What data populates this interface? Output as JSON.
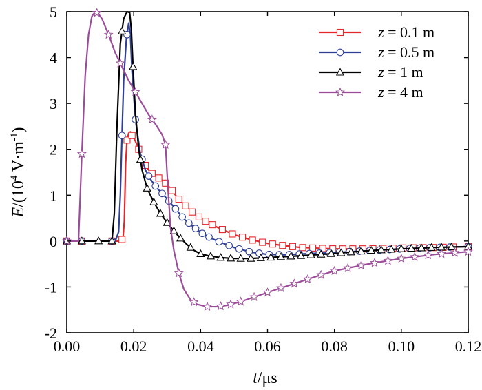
{
  "chart_data": {
    "type": "line",
    "xlabel": {
      "var": "t",
      "rest": "/μs"
    },
    "ylabel": {
      "var": "E",
      "pre": "/(10",
      "exp": "4",
      "mid": " V·m",
      "exp2": "-1",
      "post": ")"
    },
    "xlim": [
      0.0,
      0.12
    ],
    "ylim": [
      -2,
      5
    ],
    "xticks": [
      0.0,
      0.02,
      0.04,
      0.06,
      0.08,
      0.1,
      0.12
    ],
    "xtick_labels": [
      "0.00",
      "0.02",
      "0.04",
      "0.06",
      "0.08",
      "0.10",
      "0.12"
    ],
    "yticks": [
      -2,
      -1,
      0,
      1,
      2,
      3,
      4,
      5
    ],
    "ytick_labels": [
      "-2",
      "-1",
      "0",
      "1",
      "2",
      "3",
      "4",
      "5"
    ],
    "grid": false,
    "legend_position": "top-right",
    "series": [
      {
        "name": "z = 0.1 m",
        "legend": {
          "var": "z",
          "rest": " = 0.1 m"
        },
        "color": "#e3262b",
        "marker": "square",
        "x": [
          0.0,
          0.0158,
          0.0168,
          0.0172,
          0.0176,
          0.018,
          0.0185,
          0.019,
          0.0195,
          0.02,
          0.021,
          0.022,
          0.0235,
          0.025,
          0.027,
          0.029,
          0.031,
          0.033,
          0.035,
          0.038,
          0.041,
          0.045,
          0.05,
          0.055,
          0.06,
          0.065,
          0.07,
          0.08,
          0.09,
          0.1,
          0.11,
          0.12
        ],
        "y": [
          0.0,
          0.0,
          0.05,
          0.45,
          1.7,
          2.2,
          2.35,
          2.38,
          2.3,
          2.25,
          2.1,
          1.9,
          1.65,
          1.5,
          1.4,
          1.3,
          1.15,
          0.95,
          0.8,
          0.6,
          0.45,
          0.3,
          0.14,
          0.03,
          -0.05,
          -0.1,
          -0.14,
          -0.17,
          -0.17,
          -0.15,
          -0.14,
          -0.12
        ],
        "marker_x": [
          0.0,
          0.0045,
          0.0135,
          0.0165,
          0.018,
          0.0195,
          0.0215,
          0.0235,
          0.0255,
          0.0275,
          0.0295,
          0.0315,
          0.0335,
          0.0355,
          0.0375,
          0.0395,
          0.0415,
          0.0435,
          0.0465,
          0.0495,
          0.0525,
          0.0555,
          0.0585,
          0.0615,
          0.0645,
          0.0675,
          0.0705,
          0.0735,
          0.0765,
          0.0795,
          0.0825,
          0.0855,
          0.0885,
          0.0915,
          0.0945,
          0.0975,
          0.1005,
          0.1035,
          0.1065,
          0.1095,
          0.1125,
          0.1155,
          0.12
        ]
      },
      {
        "name": "z = 0.5 m",
        "legend": {
          "var": "z",
          "rest": " = 0.5 m"
        },
        "color": "#2e3f94",
        "marker": "circle",
        "x": [
          0.0,
          0.0145,
          0.0155,
          0.016,
          0.0165,
          0.017,
          0.0178,
          0.0185,
          0.019,
          0.0195,
          0.0205,
          0.022,
          0.0235,
          0.025,
          0.027,
          0.029,
          0.031,
          0.033,
          0.035,
          0.038,
          0.041,
          0.045,
          0.05,
          0.055,
          0.06,
          0.065,
          0.07,
          0.08,
          0.09,
          0.1,
          0.11,
          0.12
        ],
        "y": [
          0.0,
          0.0,
          0.2,
          1.0,
          2.3,
          3.5,
          4.4,
          4.75,
          4.5,
          3.7,
          2.65,
          1.9,
          1.55,
          1.35,
          1.15,
          1.0,
          0.83,
          0.66,
          0.48,
          0.3,
          0.14,
          0.0,
          -0.14,
          -0.24,
          -0.29,
          -0.3,
          -0.28,
          -0.25,
          -0.21,
          -0.17,
          -0.14,
          -0.12
        ],
        "marker_x": [
          0.0,
          0.0045,
          0.0135,
          0.0165,
          0.018,
          0.0205,
          0.0225,
          0.0245,
          0.0265,
          0.0285,
          0.0305,
          0.0325,
          0.0345,
          0.0365,
          0.0385,
          0.0405,
          0.0425,
          0.0455,
          0.0485,
          0.0515,
          0.0545,
          0.0575,
          0.0605,
          0.0635,
          0.0665,
          0.0695,
          0.0725,
          0.0755,
          0.0785,
          0.0815,
          0.0845,
          0.0875,
          0.0905,
          0.0935,
          0.0965,
          0.0995,
          0.1025,
          0.1055,
          0.1085,
          0.1115,
          0.1145,
          0.12
        ]
      },
      {
        "name": "z = 1 m",
        "legend": {
          "var": "z",
          "rest": " = 1 m"
        },
        "color": "#000000",
        "marker": "triangle",
        "x": [
          0.0,
          0.0135,
          0.0142,
          0.015,
          0.016,
          0.017,
          0.018,
          0.0188,
          0.0193,
          0.0198,
          0.0205,
          0.0215,
          0.0225,
          0.024,
          0.026,
          0.028,
          0.03,
          0.032,
          0.034,
          0.036,
          0.038,
          0.04,
          0.043,
          0.046,
          0.05,
          0.055,
          0.06,
          0.07,
          0.08,
          0.09,
          0.1,
          0.11,
          0.12
        ],
        "y": [
          0.0,
          0.0,
          0.6,
          2.5,
          4.3,
          4.85,
          5.0,
          4.98,
          4.6,
          3.8,
          2.8,
          2.0,
          1.55,
          1.15,
          0.85,
          0.6,
          0.4,
          0.22,
          0.06,
          -0.08,
          -0.2,
          -0.28,
          -0.33,
          -0.36,
          -0.38,
          -0.38,
          -0.36,
          -0.32,
          -0.27,
          -0.21,
          -0.17,
          -0.14,
          -0.12
        ],
        "marker_x": [
          0.0,
          0.0045,
          0.0095,
          0.0135,
          0.0165,
          0.0198,
          0.022,
          0.024,
          0.026,
          0.028,
          0.03,
          0.032,
          0.034,
          0.037,
          0.04,
          0.043,
          0.046,
          0.049,
          0.052,
          0.055,
          0.058,
          0.061,
          0.064,
          0.067,
          0.07,
          0.073,
          0.076,
          0.079,
          0.082,
          0.085,
          0.088,
          0.091,
          0.094,
          0.097,
          0.1,
          0.103,
          0.106,
          0.109,
          0.112,
          0.115,
          0.12
        ]
      },
      {
        "name": "z = 4 m",
        "legend": {
          "var": "z",
          "rest": " = 4 m"
        },
        "color": "#9a4c98",
        "marker": "star",
        "x": [
          0.0,
          0.0035,
          0.0045,
          0.0055,
          0.0065,
          0.0075,
          0.0085,
          0.0095,
          0.0105,
          0.0125,
          0.0145,
          0.0165,
          0.0185,
          0.0205,
          0.0225,
          0.0245,
          0.0265,
          0.0285,
          0.0295,
          0.0302,
          0.031,
          0.032,
          0.0335,
          0.035,
          0.037,
          0.039,
          0.042,
          0.045,
          0.048,
          0.052,
          0.056,
          0.06,
          0.065,
          0.07,
          0.075,
          0.08,
          0.09,
          0.1,
          0.11,
          0.12
        ],
        "y": [
          0.0,
          0.0,
          1.9,
          3.6,
          4.5,
          4.9,
          5.0,
          4.95,
          4.85,
          4.5,
          4.1,
          3.8,
          3.5,
          3.25,
          3.0,
          2.75,
          2.55,
          2.32,
          2.1,
          1.2,
          0.3,
          -0.2,
          -0.7,
          -1.05,
          -1.28,
          -1.38,
          -1.43,
          -1.43,
          -1.4,
          -1.32,
          -1.22,
          -1.12,
          -1.0,
          -0.88,
          -0.76,
          -0.65,
          -0.5,
          -0.38,
          -0.29,
          -0.23
        ],
        "marker_x": [
          0.0,
          0.0045,
          0.009,
          0.0125,
          0.016,
          0.0205,
          0.0255,
          0.0295,
          0.0335,
          0.038,
          0.042,
          0.046,
          0.049,
          0.052,
          0.056,
          0.06,
          0.064,
          0.068,
          0.072,
          0.076,
          0.08,
          0.084,
          0.088,
          0.092,
          0.096,
          0.1,
          0.104,
          0.108,
          0.112,
          0.116,
          0.12
        ]
      }
    ]
  }
}
